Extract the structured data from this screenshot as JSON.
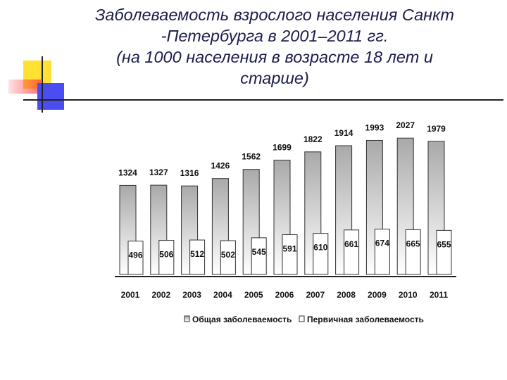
{
  "title": {
    "line1": "Заболеваемость взрослого населения Санкт",
    "line2": "-Петербурга в 2001–2011 гг.",
    "line3": "(на 1000 населения в возрасте 18 лет и",
    "line4": "старше)"
  },
  "chart_data": {
    "type": "bar",
    "categories": [
      "2001",
      "2002",
      "2003",
      "2004",
      "2005",
      "2006",
      "2007",
      "2008",
      "2009",
      "2010",
      "2011"
    ],
    "series": [
      {
        "name": "Общая заболеваемость",
        "values": [
          1324,
          1327,
          1316,
          1426,
          1562,
          1699,
          1822,
          1914,
          1993,
          2027,
          1979
        ]
      },
      {
        "name": "Первичная заболеваемость",
        "values": [
          496,
          506,
          512,
          502,
          545,
          591,
          610,
          661,
          674,
          665,
          655
        ]
      }
    ],
    "legend_position": "bottom",
    "grid": false
  },
  "colors": {
    "title": "#1c1c4e",
    "deco_yellow": "#ffe033",
    "deco_red": "#ff3c3c",
    "deco_blue": "#4a4ef0",
    "bar_fill_top": "#a9a9a9",
    "bar_fill_bottom": "#ffffff",
    "bar_stroke": "#333333"
  }
}
